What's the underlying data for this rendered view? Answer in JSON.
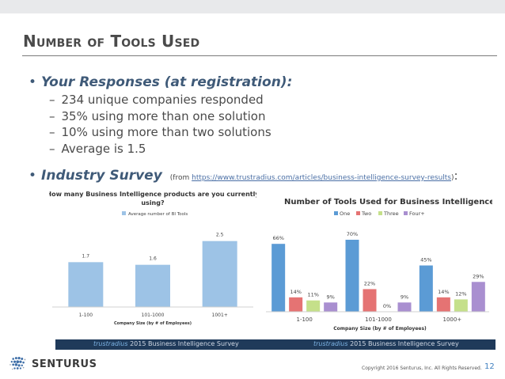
{
  "slide": {
    "title": "Number of Tools Used",
    "bullet1": "Your Responses (at registration):",
    "sub_items": [
      "234 unique companies responded",
      "35% using more than one solution",
      "10% using more than two solutions",
      "Average is 1.5"
    ],
    "bullet2": "Industry Survey",
    "source_prefix": "(from ",
    "source_url": "https://www.trustradius.com/articles/business-intelligence-survey-results",
    "source_suffix": ")",
    "colon": ":",
    "band_brand_1": "trustradius",
    "band_text_1": " 2015 Business Intelligence Survey",
    "band_brand_2": "trustradius",
    "band_text_2": " 2015 Business Intelligence Survey",
    "logo_text": "SENTURUS",
    "copyright": "Copyright 2016 Senturus, Inc. All Rights Reserved.",
    "page_number": "12"
  },
  "chart_data": [
    {
      "type": "bar",
      "title": "How many Business Intelligence products are you currently using?",
      "xlabel": "Company Size (by # of Employees)",
      "ylabel": "",
      "categories": [
        "1-100",
        "101-1000",
        "1001+"
      ],
      "series": [
        {
          "name": "Average number of BI Tools",
          "values": [
            1.7,
            1.6,
            2.5
          ],
          "color": "#9dc3e6"
        }
      ],
      "data_labels": [
        "1.7",
        "1.6",
        "2.5"
      ],
      "ylim": [
        0,
        3
      ]
    },
    {
      "type": "bar",
      "title": "Number of Tools Used for Business Intelligence",
      "xlabel": "Company Size (by # of Employees)",
      "ylabel": "",
      "categories": [
        "1-100",
        "101-1000",
        "1000+"
      ],
      "series": [
        {
          "name": "One",
          "values": [
            66,
            70,
            45
          ],
          "color": "#5b9bd5"
        },
        {
          "name": "Two",
          "values": [
            14,
            22,
            14
          ],
          "color": "#e57373"
        },
        {
          "name": "Three",
          "values": [
            11,
            0,
            12
          ],
          "color": "#c5e08a"
        },
        {
          "name": "Four+",
          "values": [
            9,
            9,
            29
          ],
          "color": "#a98fd0"
        }
      ],
      "data_labels": [
        [
          "66%",
          "14%",
          "11%",
          "9%"
        ],
        [
          "70%",
          "22%",
          "0%",
          "9%"
        ],
        [
          "45%",
          "14%",
          "12%",
          "29%"
        ]
      ],
      "ylim": [
        0,
        80
      ]
    }
  ]
}
